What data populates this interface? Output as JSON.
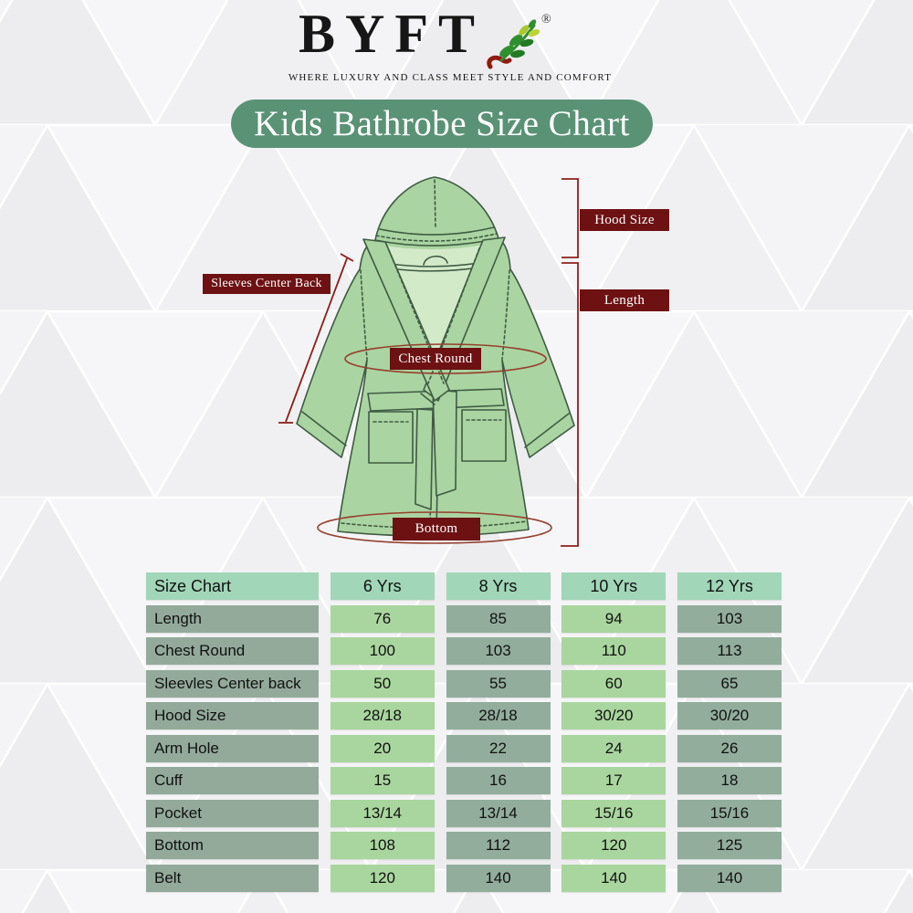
{
  "brand": {
    "name": "BYFT",
    "registered": "®",
    "tagline": "WHERE LUXURY AND CLASS MEET STYLE AND COMFORT"
  },
  "title": {
    "text": "Kids Bathrobe Size Chart"
  },
  "diagram": {
    "labels": {
      "sleeves_center_back": "Sleeves Center Back",
      "hood_size": "Hood Size",
      "length": "Length",
      "chest_round": "Chest Round",
      "bottom": "Bottom"
    },
    "colors": {
      "robe_fill": "#aad4a1",
      "robe_lining": "#d3eac9",
      "robe_outline": "#3f5b44",
      "label_bg": "#6d1113",
      "label_text": "#ffffff",
      "measure_line": "#8e1f1a",
      "girth_ellipse": "#96402e"
    }
  },
  "table": {
    "columns": [
      "Size Chart",
      "6 Yrs",
      "8 Yrs",
      "10 Yrs",
      "12 Yrs"
    ],
    "rows": [
      {
        "label": "Length",
        "values": [
          "76",
          "85",
          "94",
          "103"
        ]
      },
      {
        "label": "Chest Round",
        "values": [
          "100",
          "103",
          "110",
          "113"
        ]
      },
      {
        "label": "Sleevles Center back",
        "values": [
          "50",
          "55",
          "60",
          "65"
        ]
      },
      {
        "label": "Hood Size",
        "values": [
          "28/18",
          "28/18",
          "30/20",
          "30/20"
        ]
      },
      {
        "label": "Arm Hole",
        "values": [
          "20",
          "22",
          "24",
          "26"
        ]
      },
      {
        "label": "Cuff",
        "values": [
          "15",
          "16",
          "17",
          "18"
        ]
      },
      {
        "label": "Pocket",
        "values": [
          "13/14",
          "13/14",
          "15/16",
          "15/16"
        ]
      },
      {
        "label": "Bottom",
        "values": [
          "108",
          "112",
          "120",
          "125"
        ]
      },
      {
        "label": "Belt",
        "values": [
          "120",
          "140",
          "140",
          "140"
        ]
      }
    ],
    "colors": {
      "header_bg": "#a1d6b8",
      "label_bg": "#93aa9b",
      "cell_light": "#a9d69e",
      "cell_dark": "#92ad9c",
      "text": "#111111"
    }
  },
  "theme": {
    "banner_bg": "#5a9276",
    "banner_text": "#ffffff",
    "background": "#f2f2f4"
  }
}
